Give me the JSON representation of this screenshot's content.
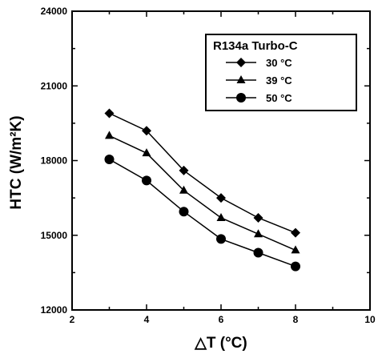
{
  "chart_data": {
    "type": "line",
    "title": "",
    "xlabel": "△T (°C)",
    "ylabel": "HTC (W/m²K)",
    "xlim": [
      2,
      10
    ],
    "ylim": [
      12000,
      24000
    ],
    "xticks": [
      2,
      4,
      6,
      8,
      10
    ],
    "yticks": [
      12000,
      15000,
      18000,
      21000,
      24000
    ],
    "grid": false,
    "legend": {
      "title": "R134a Turbo-C",
      "placement": "top-right"
    },
    "x": [
      3,
      4,
      5,
      6,
      7,
      8
    ],
    "series": [
      {
        "name": "30 °C",
        "marker": "diamond",
        "values": [
          19900,
          19200,
          17600,
          16500,
          15700,
          15100
        ]
      },
      {
        "name": "39 °C",
        "marker": "triangle",
        "values": [
          19000,
          18300,
          16800,
          15700,
          15050,
          14400
        ]
      },
      {
        "name": "50 °C",
        "marker": "circle",
        "values": [
          18050,
          17200,
          15950,
          14850,
          14300,
          13750
        ]
      }
    ],
    "colors": {
      "line": "#000000",
      "marker": "#000000"
    }
  }
}
